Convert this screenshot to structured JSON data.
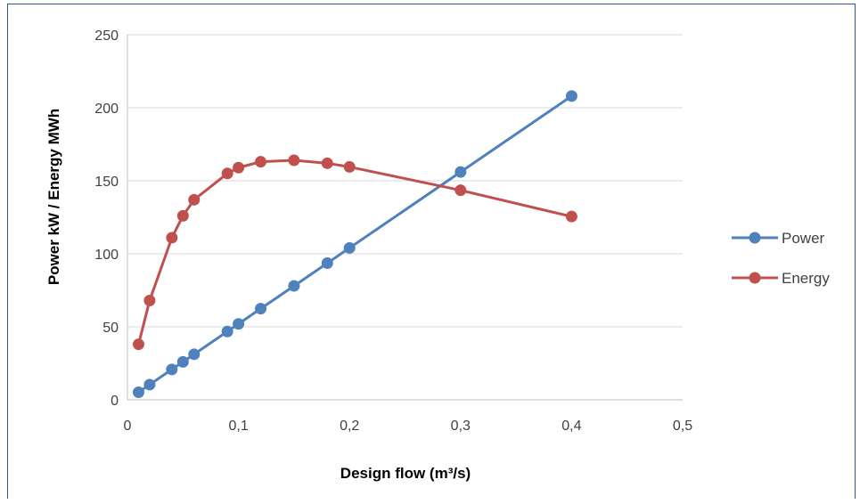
{
  "chart_data": {
    "type": "line",
    "title": "",
    "xlabel": "Design flow (m³/s)",
    "ylabel": "Power kW / Energy MWh",
    "xlim": [
      0,
      0.5
    ],
    "ylim": [
      0,
      250
    ],
    "x_ticks": [
      "0",
      "0,1",
      "0,2",
      "0,3",
      "0,4",
      "0,5"
    ],
    "y_ticks": [
      "0",
      "50",
      "100",
      "150",
      "200",
      "250"
    ],
    "grid": true,
    "legend_position": "right",
    "series": [
      {
        "name": "Power",
        "color": "#4f81bd",
        "points": [
          [
            0.01,
            5.2
          ],
          [
            0.02,
            10.4
          ],
          [
            0.04,
            20.8
          ],
          [
            0.05,
            26
          ],
          [
            0.06,
            31.2
          ],
          [
            0.09,
            46.8
          ],
          [
            0.1,
            52
          ],
          [
            0.12,
            62.4
          ],
          [
            0.15,
            78
          ],
          [
            0.18,
            93.6
          ],
          [
            0.2,
            104
          ],
          [
            0.3,
            156
          ],
          [
            0.4,
            208
          ]
        ]
      },
      {
        "name": "Energy",
        "color": "#c0504d",
        "points": [
          [
            0.01,
            38
          ],
          [
            0.02,
            68
          ],
          [
            0.04,
            111
          ],
          [
            0.05,
            126
          ],
          [
            0.06,
            137
          ],
          [
            0.09,
            155
          ],
          [
            0.1,
            159
          ],
          [
            0.12,
            163
          ],
          [
            0.15,
            164
          ],
          [
            0.18,
            162
          ],
          [
            0.2,
            159.5
          ],
          [
            0.3,
            143.5
          ],
          [
            0.4,
            125.5
          ]
        ]
      }
    ]
  }
}
